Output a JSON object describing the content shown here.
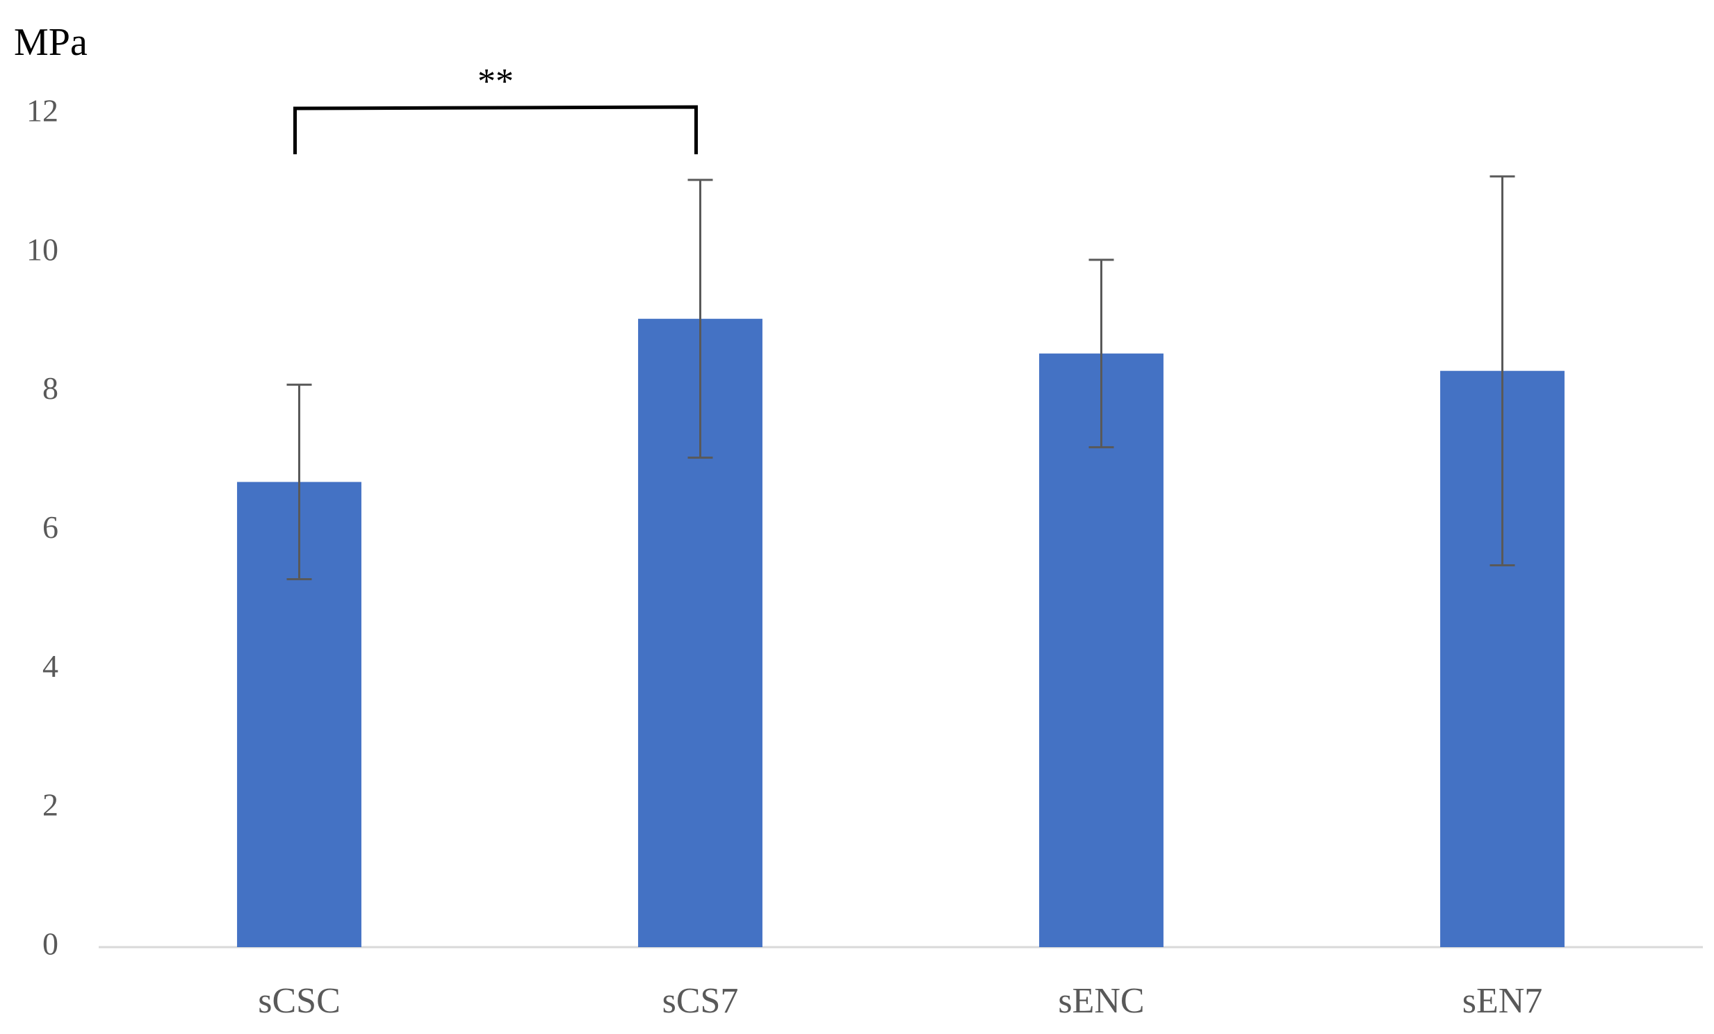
{
  "chart_data": {
    "type": "bar",
    "y_label": "MPa",
    "annotation": "**",
    "categories": [
      "sCSC",
      "sCS7",
      "sENC",
      "sEN7"
    ],
    "values": [
      6.7,
      9.05,
      8.55,
      8.3
    ],
    "errors": [
      1.4,
      2.0,
      1.35,
      2.8
    ],
    "color": "#4472c4",
    "ylim": [
      0,
      12
    ],
    "yticks": [
      0,
      2,
      4,
      6,
      8,
      10,
      12
    ],
    "grid": false
  }
}
